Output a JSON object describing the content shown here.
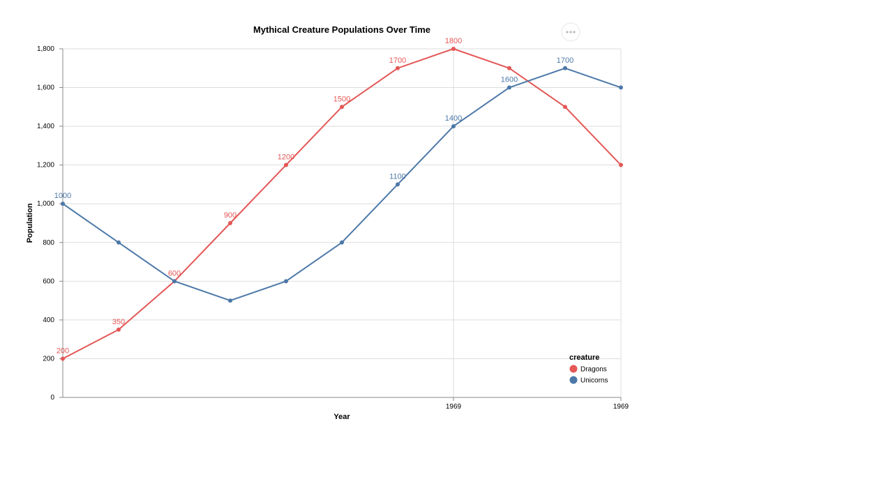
{
  "chart_data": {
    "type": "line",
    "title": "Mythical Creature Populations Over Time",
    "xlabel": "Year",
    "ylabel": "Population",
    "ylim": [
      0,
      1800
    ],
    "y_ticks": [
      0,
      200,
      400,
      600,
      800,
      1000,
      1200,
      1400,
      1600,
      1800
    ],
    "y_tick_labels": [
      "0",
      "200",
      "400",
      "600",
      "800",
      "1,000",
      "1,200",
      "1,400",
      "1,600",
      "1,800"
    ],
    "x": [
      0,
      1,
      2,
      3,
      4,
      5,
      6,
      7,
      8,
      9,
      10
    ],
    "x_tick_positions": [
      7,
      10
    ],
    "x_tick_labels": [
      "1969",
      "1969"
    ],
    "grid": true,
    "series": [
      {
        "name": "Dragons",
        "color": "#e45756",
        "values": [
          200,
          350,
          600,
          900,
          1200,
          1500,
          1700,
          1800,
          1700,
          1500,
          1200
        ],
        "labels": [
          "200",
          "350",
          "600",
          "900",
          "1200",
          "1500",
          "1700",
          "1800",
          "",
          "",
          ""
        ]
      },
      {
        "name": "Unicorns",
        "color": "#4c78a8",
        "values": [
          1000,
          800,
          600,
          500,
          600,
          800,
          1100,
          1400,
          1600,
          1700,
          1600
        ],
        "labels": [
          "1000",
          "",
          "",
          "",
          "",
          "",
          "1100",
          "1400",
          "1600",
          "1700",
          ""
        ]
      }
    ],
    "legend": {
      "title": "creature",
      "position": "bottom-right"
    }
  },
  "menu": {
    "icon": "more-horizontal-icon"
  }
}
